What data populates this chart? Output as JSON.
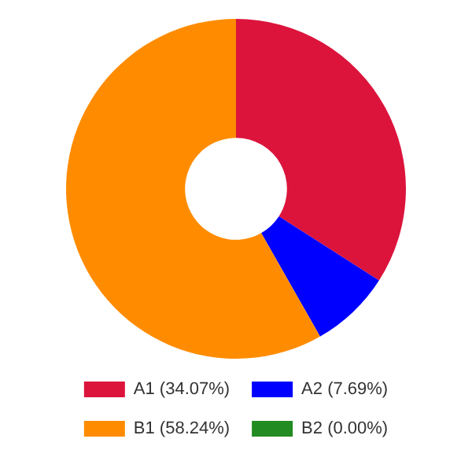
{
  "chart_data": {
    "type": "donut",
    "categories": [
      "A1 (34.07%)",
      "A2 (7.69%)",
      "B1 (58.24%)",
      "B2 (0.00%)"
    ],
    "values": [
      34.07,
      7.69,
      58.24,
      0
    ],
    "colors": [
      "#dc143c",
      "#0000ff",
      "#ff8c00",
      "#228b22"
    ],
    "legend": "bottom"
  }
}
